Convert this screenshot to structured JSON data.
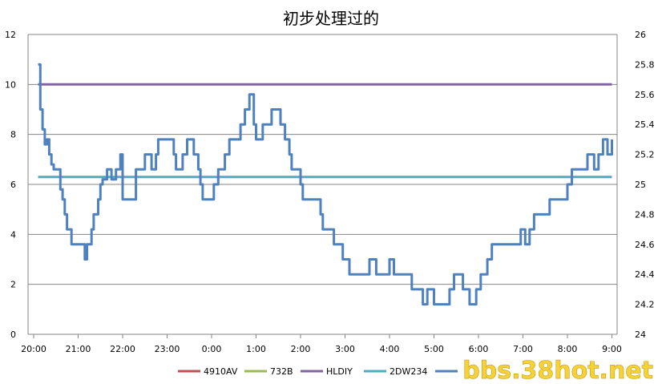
{
  "chart_data": {
    "type": "line",
    "title": "初步处理过的",
    "x_ticks": [
      "20:00",
      "21:00",
      "22:00",
      "23:00",
      "0:00",
      "1:00",
      "2:00",
      "3:00",
      "4:00",
      "5:00",
      "6:00",
      "7:00",
      "8:00",
      "9:00"
    ],
    "y_left": {
      "min": 0,
      "max": 12,
      "ticks": [
        "0",
        "2",
        "4",
        "6",
        "8",
        "10",
        "12"
      ]
    },
    "y_right": {
      "min": 24,
      "max": 26,
      "ticks": [
        "24",
        "24.2",
        "24.4",
        "24.6",
        "24.8",
        "25",
        "25.2",
        "25.4",
        "25.6",
        "25.8",
        "26"
      ]
    },
    "grid": true,
    "legend_position": "bottom",
    "series": [
      {
        "name": "4910AV",
        "color": "#c0504d",
        "axis": "left",
        "points": []
      },
      {
        "name": "732B",
        "color": "#9bbb59",
        "axis": "left",
        "points": []
      },
      {
        "name": "HLDIY",
        "color": "#8064a2",
        "axis": "left",
        "points": [
          [
            0.1,
            10
          ],
          [
            13.0,
            10
          ]
        ]
      },
      {
        "name": "2DW234",
        "color": "#4bacc6",
        "axis": "left",
        "points": [
          [
            0.1,
            6.3
          ],
          [
            13.0,
            6.3
          ]
        ]
      },
      {
        "name": "",
        "color": "#4f81bd",
        "axis": "left",
        "points": [
          [
            0.1,
            10.8
          ],
          [
            0.15,
            9
          ],
          [
            0.2,
            8.2
          ],
          [
            0.25,
            7.6
          ],
          [
            0.3,
            7.8
          ],
          [
            0.35,
            7.2
          ],
          [
            0.4,
            6.8
          ],
          [
            0.45,
            6.6
          ],
          [
            0.55,
            6.6
          ],
          [
            0.6,
            5.8
          ],
          [
            0.65,
            5.4
          ],
          [
            0.7,
            4.8
          ],
          [
            0.75,
            4.2
          ],
          [
            0.8,
            4.2
          ],
          [
            0.85,
            3.6
          ],
          [
            1.1,
            3.6
          ],
          [
            1.15,
            3.0
          ],
          [
            1.2,
            3.6
          ],
          [
            1.3,
            4.2
          ],
          [
            1.35,
            4.8
          ],
          [
            1.45,
            5.4
          ],
          [
            1.5,
            6.0
          ],
          [
            1.55,
            6.2
          ],
          [
            1.65,
            6.6
          ],
          [
            1.75,
            6.2
          ],
          [
            1.85,
            6.6
          ],
          [
            1.95,
            7.2
          ],
          [
            2.0,
            5.4
          ],
          [
            2.2,
            5.4
          ],
          [
            2.3,
            6.6
          ],
          [
            2.45,
            6.6
          ],
          [
            2.5,
            7.2
          ],
          [
            2.65,
            6.6
          ],
          [
            2.75,
            7.2
          ],
          [
            2.8,
            7.8
          ],
          [
            3.1,
            7.8
          ],
          [
            3.15,
            7.2
          ],
          [
            3.2,
            6.6
          ],
          [
            3.35,
            7.2
          ],
          [
            3.45,
            7.8
          ],
          [
            3.6,
            7.2
          ],
          [
            3.7,
            6.6
          ],
          [
            3.75,
            6.0
          ],
          [
            3.8,
            5.4
          ],
          [
            3.95,
            5.4
          ],
          [
            4.05,
            6.0
          ],
          [
            4.15,
            6.6
          ],
          [
            4.25,
            6.6
          ],
          [
            4.3,
            7.2
          ],
          [
            4.4,
            7.8
          ],
          [
            4.55,
            7.8
          ],
          [
            4.65,
            8.4
          ],
          [
            4.75,
            9.0
          ],
          [
            4.85,
            9.6
          ],
          [
            4.95,
            8.4
          ],
          [
            5.0,
            7.8
          ],
          [
            5.1,
            7.8
          ],
          [
            5.15,
            8.4
          ],
          [
            5.25,
            8.4
          ],
          [
            5.35,
            9.0
          ],
          [
            5.45,
            9.0
          ],
          [
            5.55,
            8.4
          ],
          [
            5.65,
            7.8
          ],
          [
            5.75,
            7.2
          ],
          [
            5.8,
            6.6
          ],
          [
            5.9,
            6.6
          ],
          [
            6.0,
            6.0
          ],
          [
            6.05,
            5.4
          ],
          [
            6.35,
            5.4
          ],
          [
            6.45,
            4.8
          ],
          [
            6.5,
            4.2
          ],
          [
            6.65,
            4.2
          ],
          [
            6.75,
            3.6
          ],
          [
            6.95,
            3.0
          ],
          [
            7.1,
            2.4
          ],
          [
            7.3,
            2.4
          ],
          [
            7.45,
            2.4
          ],
          [
            7.55,
            3.0
          ],
          [
            7.7,
            2.4
          ],
          [
            7.9,
            2.4
          ],
          [
            8.0,
            3.0
          ],
          [
            8.1,
            2.4
          ],
          [
            8.35,
            2.4
          ],
          [
            8.5,
            1.8
          ],
          [
            8.65,
            1.8
          ],
          [
            8.75,
            1.2
          ],
          [
            8.85,
            1.8
          ],
          [
            9.0,
            1.2
          ],
          [
            9.3,
            1.2
          ],
          [
            9.35,
            1.8
          ],
          [
            9.45,
            2.4
          ],
          [
            9.65,
            1.8
          ],
          [
            9.8,
            1.2
          ],
          [
            9.95,
            1.8
          ],
          [
            10.05,
            2.4
          ],
          [
            10.2,
            3.0
          ],
          [
            10.3,
            3.6
          ],
          [
            10.85,
            3.6
          ],
          [
            10.95,
            4.2
          ],
          [
            11.05,
            3.6
          ],
          [
            11.15,
            4.2
          ],
          [
            11.25,
            4.8
          ],
          [
            11.5,
            4.8
          ],
          [
            11.6,
            5.4
          ],
          [
            11.9,
            5.4
          ],
          [
            12.0,
            6.0
          ],
          [
            12.1,
            6.6
          ],
          [
            12.3,
            6.6
          ],
          [
            12.45,
            7.2
          ],
          [
            12.6,
            6.6
          ],
          [
            12.7,
            7.2
          ],
          [
            12.8,
            7.8
          ],
          [
            12.9,
            7.2
          ],
          [
            13.0,
            7.8
          ]
        ]
      }
    ]
  },
  "legend": [
    {
      "label": "4910AV",
      "color": "#c0504d"
    },
    {
      "label": "732B",
      "color": "#9bbb59"
    },
    {
      "label": "HLDIY",
      "color": "#8064a2"
    },
    {
      "label": "2DW234",
      "color": "#4bacc6"
    },
    {
      "label": "",
      "color": "#4f81bd"
    }
  ],
  "watermark": "bbs.38hot.net"
}
